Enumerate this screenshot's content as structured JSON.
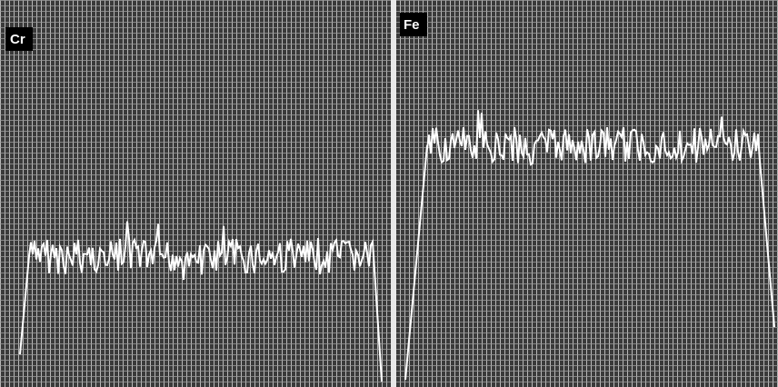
{
  "panels": [
    {
      "label": "Cr"
    },
    {
      "label": "Fe"
    }
  ]
}
